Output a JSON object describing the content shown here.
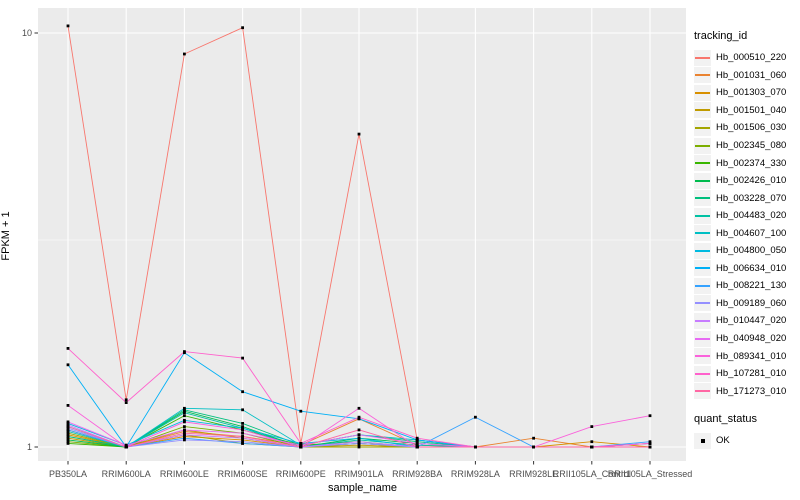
{
  "chart_data": {
    "type": "line",
    "title": "",
    "xlabel": "sample_name",
    "ylabel": "FPKM + 1",
    "y_scale": "log10",
    "ylim": [
      0.925,
      11.5
    ],
    "grid": "on",
    "panel_bg": "#EBEBEB",
    "gridline_color": "#FFFFFF",
    "point_color": "#000000",
    "tick_label_color": "#4D4D4D",
    "y_ticks": [
      {
        "label": "10",
        "value": 10
      },
      {
        "label": "1",
        "value": 1
      }
    ],
    "y_minor_breaks": [
      3.1623
    ],
    "categories": [
      "PB350LA",
      "RRIM600LA",
      "RRIM600LE",
      "RRIM600SE",
      "RRIM600PE",
      "RRIM901LA",
      "RRIM928BA",
      "RRIM928LA",
      "RRIM928LE",
      "RRII105LA_Control",
      "RRII105LA_Stressed"
    ],
    "legend_title": "tracking_id",
    "legend_position": "right",
    "quant_legend": {
      "title": "quant_status",
      "items": [
        {
          "label": "OK",
          "marker": "black-square"
        }
      ]
    },
    "series": [
      {
        "name": "Hb_000510_220",
        "color": "#F8766D",
        "values": [
          10.4,
          1.3,
          8.9,
          10.3,
          1.02,
          5.7,
          1.04,
          1.0,
          1.0,
          1.0,
          1.0
        ]
      },
      {
        "name": "Hb_001031_060",
        "color": "#EA8331",
        "values": [
          1.1,
          1.0,
          1.09,
          1.06,
          1.01,
          1.17,
          1.01,
          1.0,
          1.05,
          1.0,
          1.02
        ]
      },
      {
        "name": "Hb_001303_070",
        "color": "#D89000",
        "values": [
          1.07,
          1.0,
          1.06,
          1.04,
          1.0,
          1.02,
          1.0,
          1.0,
          1.0,
          1.03,
          1.0
        ]
      },
      {
        "name": "Hb_001501_040",
        "color": "#C09B00",
        "values": [
          1.05,
          1.0,
          1.1,
          1.05,
          1.0,
          1.01,
          1.0,
          1.0,
          1.0,
          1.0,
          1.0
        ]
      },
      {
        "name": "Hb_001506_030",
        "color": "#A3A500",
        "values": [
          1.08,
          1.0,
          1.07,
          1.02,
          1.0,
          1.0,
          1.0,
          1.0,
          1.0,
          1.0,
          1.0
        ]
      },
      {
        "name": "Hb_002345_080",
        "color": "#7CAE00",
        "values": [
          1.03,
          1.0,
          1.12,
          1.08,
          1.0,
          1.02,
          1.0,
          1.0,
          1.0,
          1.0,
          1.0
        ]
      },
      {
        "name": "Hb_002374_330",
        "color": "#39B600",
        "values": [
          1.02,
          1.0,
          1.19,
          1.1,
          1.01,
          1.03,
          1.0,
          1.0,
          1.0,
          1.0,
          1.0
        ]
      },
      {
        "name": "Hb_002426_010",
        "color": "#00BB4E",
        "values": [
          1.04,
          1.0,
          1.22,
          1.12,
          1.0,
          1.05,
          1.02,
          1.0,
          1.0,
          1.0,
          1.0
        ]
      },
      {
        "name": "Hb_003228_070",
        "color": "#00BF7D",
        "values": [
          1.06,
          1.0,
          1.23,
          1.14,
          1.01,
          1.07,
          1.03,
          1.0,
          1.0,
          1.0,
          1.0
        ]
      },
      {
        "name": "Hb_004483_020",
        "color": "#00C1A3",
        "values": [
          1.09,
          1.0,
          1.21,
          1.11,
          1.0,
          1.04,
          1.01,
          1.0,
          1.0,
          1.0,
          1.0
        ]
      },
      {
        "name": "Hb_004607_100",
        "color": "#00BFC4",
        "values": [
          1.12,
          1.0,
          1.24,
          1.23,
          1.01,
          1.07,
          1.04,
          1.0,
          1.0,
          1.0,
          1.02
        ]
      },
      {
        "name": "Hb_004800_050",
        "color": "#00BAE0",
        "values": [
          1.14,
          1.01,
          1.16,
          1.11,
          1.02,
          1.05,
          1.0,
          1.0,
          1.0,
          1.0,
          1.0
        ]
      },
      {
        "name": "Hb_006634_010",
        "color": "#00B0F6",
        "values": [
          1.58,
          1.0,
          1.69,
          1.36,
          1.22,
          1.17,
          1.04,
          1.0,
          1.0,
          1.0,
          1.0
        ]
      },
      {
        "name": "Hb_008221_130",
        "color": "#35A2FF",
        "values": [
          1.1,
          1.0,
          1.05,
          1.02,
          1.0,
          1.02,
          1.0,
          1.18,
          1.0,
          1.0,
          1.03
        ]
      },
      {
        "name": "Hb_009189_060",
        "color": "#9590FF",
        "values": [
          1.11,
          1.0,
          1.04,
          1.03,
          1.0,
          1.02,
          1.0,
          1.0,
          1.0,
          1.0,
          1.0
        ]
      },
      {
        "name": "Hb_010447_020",
        "color": "#C77CFF",
        "values": [
          1.13,
          1.0,
          1.07,
          1.05,
          1.0,
          1.03,
          1.0,
          1.0,
          1.0,
          1.0,
          1.0
        ]
      },
      {
        "name": "Hb_040948_020",
        "color": "#E76BF3",
        "values": [
          1.15,
          1.01,
          1.1,
          1.08,
          1.01,
          1.07,
          1.02,
          1.0,
          1.0,
          1.0,
          1.02
        ]
      },
      {
        "name": "Hb_089341_010",
        "color": "#FA62DB",
        "values": [
          1.26,
          1.0,
          1.15,
          1.1,
          1.0,
          1.24,
          1.0,
          1.0,
          1.0,
          1.12,
          1.19
        ]
      },
      {
        "name": "Hb_107281_010",
        "color": "#FF61CC",
        "values": [
          1.73,
          1.28,
          1.7,
          1.64,
          1.02,
          1.18,
          1.05,
          1.0,
          1.0,
          1.0,
          1.02
        ]
      },
      {
        "name": "Hb_171273_010",
        "color": "#FF67A4",
        "values": [
          1.12,
          1.0,
          1.08,
          1.06,
          1.0,
          1.1,
          1.0,
          1.0,
          1.0,
          1.0,
          1.0
        ]
      }
    ]
  }
}
